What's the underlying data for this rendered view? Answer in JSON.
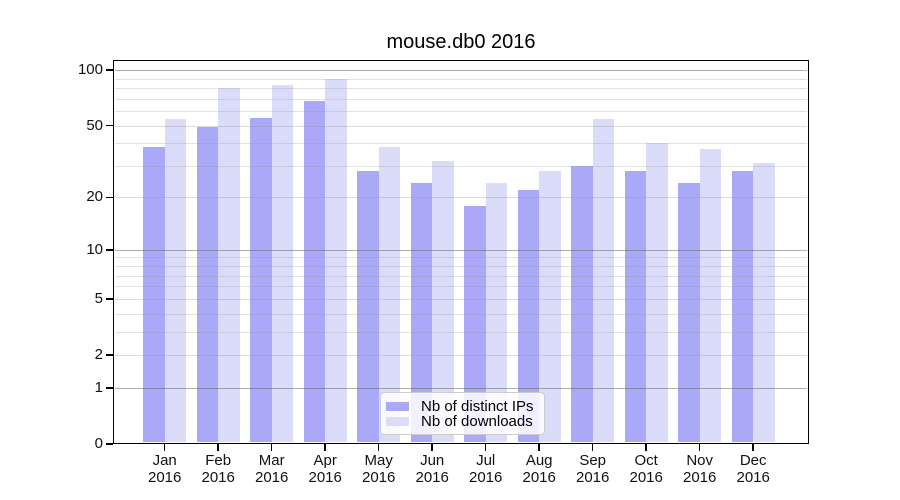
{
  "chart_data": {
    "type": "bar",
    "title": "mouse.db0 2016",
    "categories": [
      "Jan 2016",
      "Feb 2016",
      "Mar 2016",
      "Apr 2016",
      "May 2016",
      "Jun 2016",
      "Jul 2016",
      "Aug 2016",
      "Sep 2016",
      "Oct 2016",
      "Nov 2016",
      "Dec 2016"
    ],
    "series": [
      {
        "name": "Nb of distinct IPs",
        "color": "#a9a9f7",
        "values": [
          38,
          49,
          55,
          68,
          28,
          24,
          18,
          22,
          30,
          28,
          24,
          28
        ]
      },
      {
        "name": "Nb of downloads",
        "color": "#dbdbfa",
        "values": [
          54,
          80,
          83,
          90,
          38,
          32,
          24,
          28,
          54,
          40,
          37,
          31
        ]
      }
    ],
    "xlabel": "",
    "ylabel": "",
    "y_axis": {
      "scale": "log1p",
      "major_ticks": [
        0,
        1,
        2,
        5,
        10,
        20,
        50,
        100
      ],
      "minor_ticks": [
        3,
        4,
        6,
        7,
        8,
        9,
        30,
        40,
        60,
        70,
        80,
        90
      ],
      "ylim": [
        0,
        112
      ]
    },
    "grid": true,
    "legend_position": "bottom-center",
    "colors": {
      "axis": "#000000",
      "grid_minor": "#ececec",
      "grid_decade": "#b4b4b4",
      "background": "#ffffff"
    }
  }
}
